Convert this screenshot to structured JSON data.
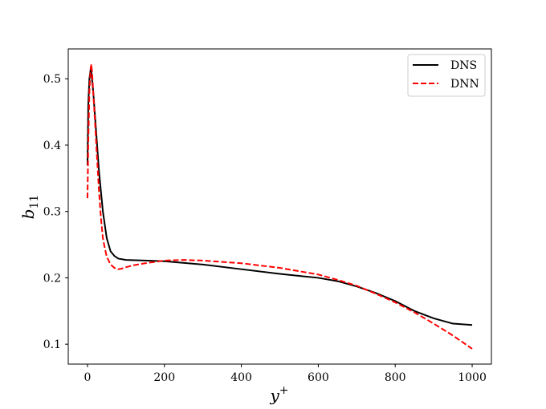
{
  "chart_data": {
    "type": "line",
    "xlabel": "y",
    "xlabel_sup": "+",
    "ylabel": "b",
    "ylabel_sub": "11",
    "xlim": [
      -50,
      1050
    ],
    "ylim": [
      0.07,
      0.545
    ],
    "xticks": [
      0,
      200,
      400,
      600,
      800,
      1000
    ],
    "yticks": [
      0.1,
      0.2,
      0.3,
      0.4,
      0.5
    ],
    "legend": {
      "placement": "top-right"
    },
    "grid": false,
    "series": [
      {
        "name": "DNS",
        "color": "#000000",
        "style": "solid",
        "x": [
          0,
          2,
          5,
          8,
          10,
          15,
          20,
          25,
          30,
          40,
          50,
          60,
          70,
          80,
          100,
          150,
          200,
          300,
          400,
          500,
          600,
          650,
          700,
          750,
          800,
          850,
          900,
          950,
          1000
        ],
        "y": [
          0.37,
          0.46,
          0.5,
          0.513,
          0.51,
          0.48,
          0.44,
          0.4,
          0.36,
          0.3,
          0.26,
          0.24,
          0.233,
          0.229,
          0.227,
          0.226,
          0.225,
          0.22,
          0.213,
          0.206,
          0.2,
          0.195,
          0.187,
          0.177,
          0.165,
          0.15,
          0.139,
          0.131,
          0.129
        ]
      },
      {
        "name": "DNN",
        "color": "#ff0000",
        "style": "dashed",
        "x": [
          0,
          2,
          5,
          8,
          10,
          12,
          15,
          20,
          25,
          30,
          35,
          40,
          45,
          50,
          60,
          70,
          80,
          90,
          100,
          120,
          150,
          200,
          250,
          300,
          400,
          500,
          600,
          650,
          700,
          750,
          800,
          850,
          900,
          950,
          1000
        ],
        "y": [
          0.32,
          0.4,
          0.48,
          0.515,
          0.522,
          0.51,
          0.48,
          0.43,
          0.38,
          0.33,
          0.29,
          0.26,
          0.245,
          0.232,
          0.22,
          0.215,
          0.213,
          0.214,
          0.216,
          0.219,
          0.222,
          0.226,
          0.227,
          0.226,
          0.222,
          0.215,
          0.205,
          0.197,
          0.188,
          0.176,
          0.163,
          0.148,
          0.131,
          0.113,
          0.093
        ]
      }
    ]
  }
}
